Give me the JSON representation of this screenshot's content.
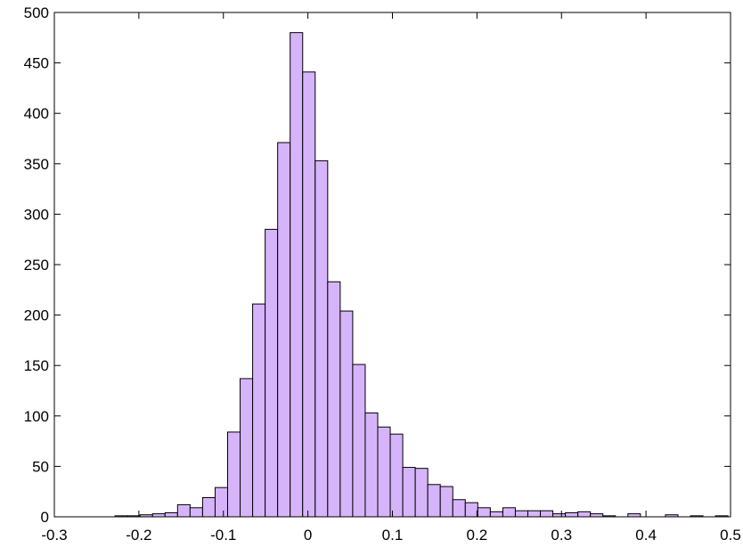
{
  "chart_data": {
    "type": "histogram",
    "bins": [
      -0.2282,
      -0.2134,
      -0.1986,
      -0.1838,
      -0.169,
      -0.1542,
      -0.1394,
      -0.1246,
      -0.1098,
      -0.095,
      -0.0802,
      -0.0654,
      -0.0506,
      -0.0358,
      -0.021,
      -0.0062,
      0.0086,
      0.0234,
      0.0382,
      0.053,
      0.0678,
      0.0826,
      0.0974,
      0.1122,
      0.127,
      0.1418,
      0.1566,
      0.1714,
      0.1862,
      0.201,
      0.2158,
      0.2306,
      0.2454,
      0.2602,
      0.275,
      0.2898,
      0.3046,
      0.3194,
      0.3342,
      0.349,
      0.3638,
      0.3786,
      0.3934,
      0.4082,
      0.423,
      0.4378,
      0.4526,
      0.4674,
      0.4822,
      0.497
    ],
    "values": [
      1,
      1,
      2,
      3,
      4,
      12,
      9,
      19,
      29,
      84,
      137,
      211,
      285,
      371,
      480,
      441,
      353,
      233,
      204,
      151,
      103,
      89,
      82,
      49,
      48,
      32,
      30,
      17,
      14,
      9,
      5,
      9,
      6,
      6,
      6,
      3,
      4,
      5,
      3,
      1,
      0,
      3,
      0,
      0,
      2,
      0,
      1,
      0,
      1
    ],
    "color": "#d6b4fa",
    "xlim": [
      -0.3,
      0.5
    ],
    "xticks": [
      -0.3,
      -0.2,
      -0.1,
      0,
      0.1,
      0.2,
      0.3,
      0.4,
      0.5
    ],
    "ylim": [
      0,
      500
    ],
    "yticks": [
      0,
      50,
      100,
      150,
      200,
      250,
      300,
      350,
      400,
      450,
      500
    ]
  }
}
